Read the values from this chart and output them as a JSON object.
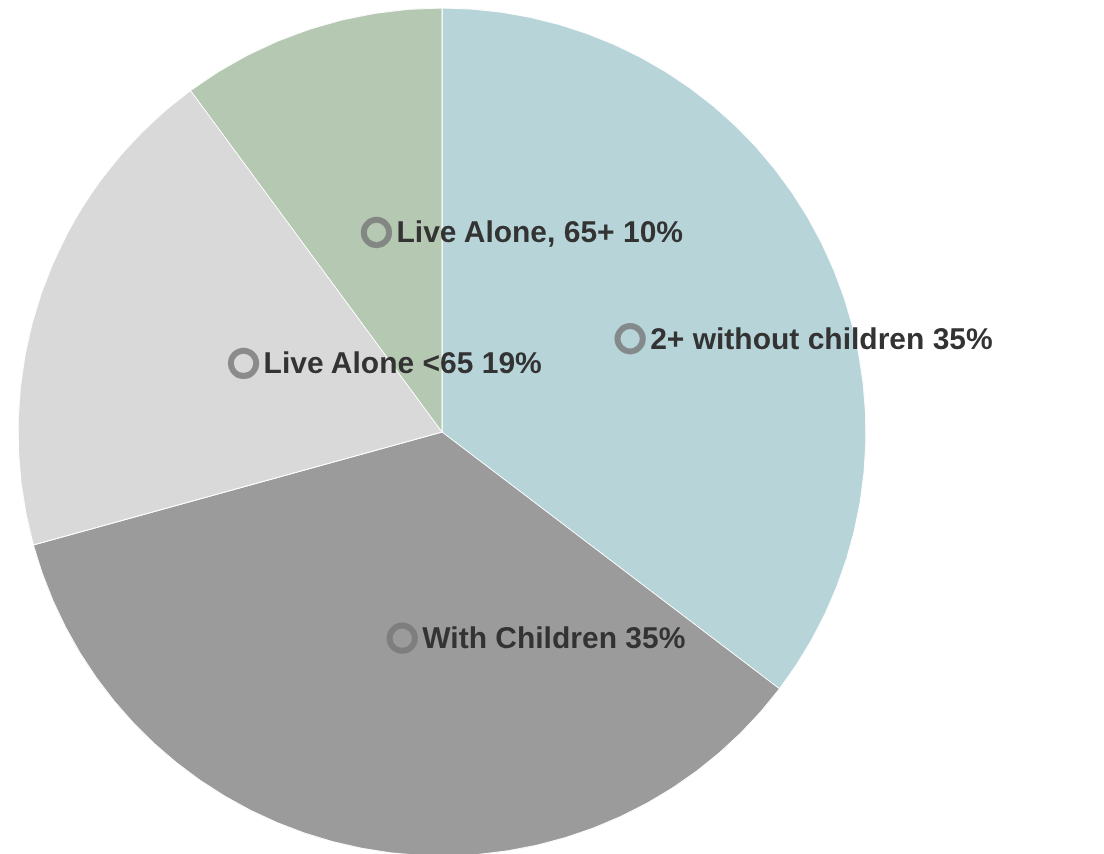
{
  "chart_data": {
    "type": "pie",
    "categories": [
      "2+ without children",
      "With Children",
      "Live Alone <65",
      "Live Alone, 65+"
    ],
    "values": [
      35,
      35,
      19,
      10
    ],
    "value_labels": [
      "35%",
      "35%",
      "19%",
      "10%"
    ],
    "colors": [
      "#b7d4d9",
      "#9b9b9b",
      "#d9d9d9",
      "#b5c8b2"
    ],
    "legend": "center"
  }
}
